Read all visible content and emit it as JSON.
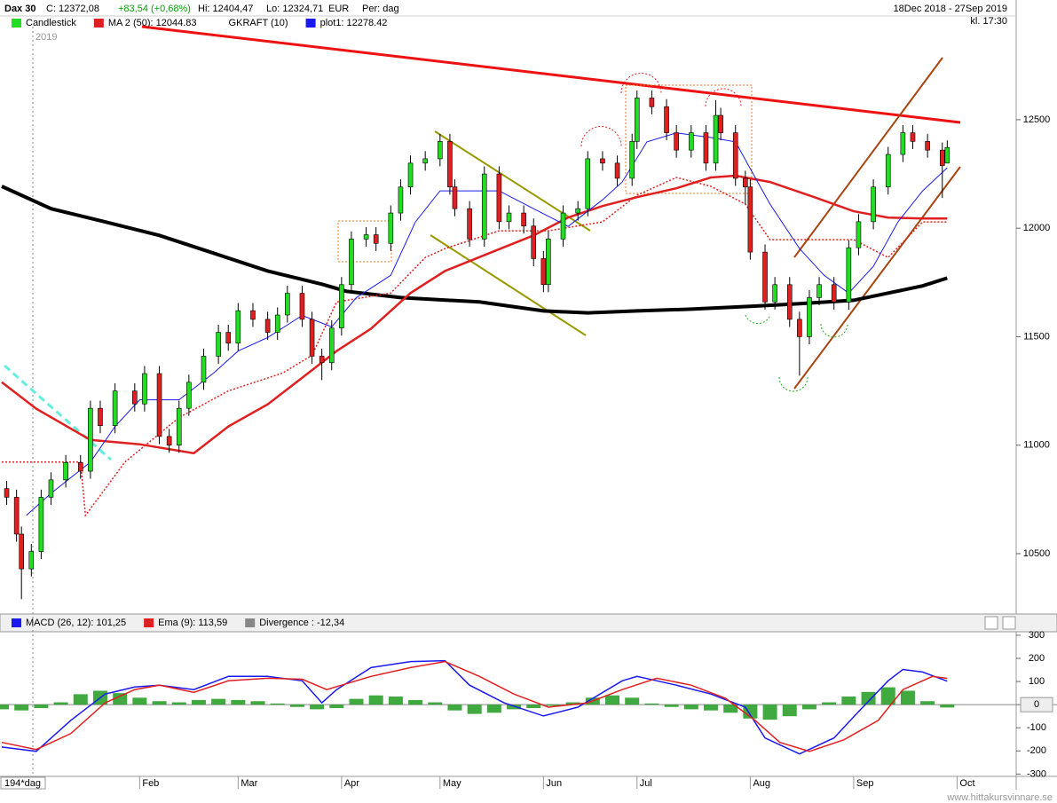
{
  "header": {
    "title": "Dax 30",
    "close": "C: 12372,08",
    "change": "+83,54 (+0,68%)",
    "high": "Hi: 12404,47",
    "low": "Lo: 12324,71",
    "currency": "EUR",
    "period": "Per: dag",
    "range": "18Dec 2018 - 27Sep 2019",
    "time": "kl. 17:30",
    "year": "2019",
    "bars_count": "194*dag",
    "watermark": "www.hittakursvinnare.se"
  },
  "chart_data": [
    {
      "type": "candlestick",
      "xlim": [
        -0.36,
        206
      ],
      "ylim": [
        10230,
        12970
      ],
      "xticks": [
        {
          "value": 28,
          "label": "Feb"
        },
        {
          "value": 48,
          "label": "Mar"
        },
        {
          "value": 69,
          "label": "Apr"
        },
        {
          "value": 89,
          "label": "May"
        },
        {
          "value": 110,
          "label": "Jun"
        },
        {
          "value": 129,
          "label": "Jul"
        },
        {
          "value": 152,
          "label": "Aug"
        },
        {
          "value": 173,
          "label": "Sep"
        },
        {
          "value": 194,
          "label": "Oct"
        }
      ],
      "yticks": [
        10500,
        11000,
        11500,
        12000,
        12500
      ],
      "candles": {
        "name": "Candlestick",
        "color": "#22dd22",
        "down_color": "#e02020",
        "x": [
          1,
          3,
          4,
          6,
          8,
          10,
          13,
          16,
          18,
          20,
          23,
          27,
          29,
          32,
          34,
          36,
          38,
          41,
          44,
          46,
          48,
          51,
          54,
          56,
          58,
          61,
          63,
          65,
          67,
          69,
          71,
          74,
          76,
          79,
          81,
          83,
          86,
          89,
          91,
          92,
          95,
          98,
          101,
          103,
          106,
          108,
          110,
          111,
          114,
          117,
          119,
          122,
          125,
          128,
          129,
          132,
          135,
          137,
          140,
          143,
          145,
          146,
          149,
          151,
          152,
          155,
          157,
          160,
          162,
          164,
          166,
          169,
          172,
          174,
          177,
          180,
          183,
          185,
          188,
          191,
          192
        ],
        "open": [
          10800,
          10760,
          10590,
          10430,
          10510,
          10760,
          10840,
          10920,
          10880,
          11170,
          11090,
          11250,
          11190,
          11330,
          11040,
          11000,
          11170,
          11290,
          11410,
          11520,
          11470,
          11620,
          11580,
          11520,
          11600,
          11700,
          11580,
          11410,
          11380,
          11540,
          11740,
          11950,
          11970,
          11930,
          12070,
          12190,
          12300,
          12320,
          12400,
          12190,
          12090,
          11950,
          12250,
          12030,
          12070,
          12010,
          11860,
          11740,
          11950,
          12070,
          12090,
          12320,
          12300,
          12230,
          12400,
          12600,
          12560,
          12440,
          12360,
          12440,
          12300,
          12520,
          12440,
          12230,
          12190,
          11890,
          11660,
          11740,
          11580,
          11500,
          11680,
          11740,
          11660,
          11910,
          12030,
          12190,
          12340,
          12440,
          12400,
          12360,
          12300
        ],
        "high": [
          10835,
          10795,
          10625,
          10545,
          10795,
          10875,
          10955,
          10955,
          11205,
          11205,
          11285,
          11285,
          11365,
          11365,
          11075,
          11205,
          11325,
          11445,
          11555,
          11555,
          11655,
          11655,
          11615,
          11635,
          11735,
          11735,
          11615,
          11445,
          11575,
          11775,
          11985,
          12005,
          12005,
          12105,
          12225,
          12335,
          12355,
          12435,
          12435,
          12225,
          12125,
          12285,
          12285,
          12105,
          12105,
          12045,
          11895,
          11985,
          12105,
          12125,
          12355,
          12355,
          12335,
          12435,
          12635,
          12635,
          12595,
          12475,
          12475,
          12475,
          12590,
          12555,
          12475,
          12265,
          12225,
          11925,
          11775,
          11775,
          11615,
          11715,
          11775,
          11775,
          11945,
          12065,
          12225,
          12375,
          12475,
          12475,
          12435,
          12395,
          12404.47
        ],
        "low": [
          10725,
          10555,
          10290,
          10395,
          10475,
          10725,
          10805,
          10845,
          10845,
          11055,
          11055,
          11155,
          11155,
          11005,
          10965,
          10965,
          11135,
          11255,
          11375,
          11435,
          11435,
          11545,
          11485,
          11485,
          11565,
          11545,
          11375,
          11300,
          11345,
          11505,
          11705,
          11915,
          11895,
          11895,
          12035,
          12155,
          12265,
          12285,
          12155,
          12055,
          11915,
          11915,
          11995,
          11995,
          11975,
          11825,
          11705,
          11705,
          11915,
          12035,
          12055,
          12265,
          12195,
          12195,
          12365,
          12525,
          12405,
          12325,
          12325,
          12265,
          12265,
          12405,
          12195,
          12110,
          11855,
          11625,
          11625,
          11545,
          11320,
          11465,
          11645,
          11625,
          11625,
          11875,
          11995,
          12155,
          12305,
          12365,
          12325,
          12140,
          12324.71
        ],
        "close": [
          10760,
          10590,
          10430,
          10510,
          10760,
          10840,
          10920,
          10880,
          11170,
          11090,
          11250,
          11190,
          11330,
          11040,
          11000,
          11170,
          11290,
          11410,
          11520,
          11470,
          11620,
          11580,
          11520,
          11600,
          11700,
          11580,
          11410,
          11380,
          11540,
          11740,
          11950,
          11970,
          11930,
          12070,
          12190,
          12300,
          12320,
          12400,
          12190,
          12090,
          11950,
          12250,
          12030,
          12070,
          12010,
          11860,
          11740,
          11950,
          12070,
          12090,
          12320,
          12300,
          12230,
          12400,
          12600,
          12560,
          12440,
          12360,
          12440,
          12300,
          12520,
          12440,
          12230,
          12190,
          11890,
          11660,
          11740,
          11580,
          11500,
          11680,
          11740,
          11660,
          11910,
          12030,
          12190,
          12340,
          12440,
          12400,
          12360,
          12288.54,
          12372.08
        ]
      },
      "series": [
        {
          "color": "#000000",
          "style": "bold",
          "x": [
            0,
            10,
            21,
            32,
            43,
            54,
            65,
            70,
            81,
            97,
            110,
            119,
            129,
            140,
            152,
            162,
            173,
            180,
            187,
            192
          ],
          "values": [
            12193,
            12090,
            12029,
            11967,
            11885,
            11803,
            11742,
            11709,
            11680,
            11660,
            11619,
            11610,
            11619,
            11627,
            11640,
            11652,
            11668,
            11701,
            11734,
            11770
          ]
        },
        {
          "name": "MA 2 (50): 12044.83",
          "color": "#e02020",
          "style": "solid",
          "x": [
            0,
            7,
            18,
            28,
            39,
            46,
            54,
            61,
            68,
            75,
            83,
            90,
            99,
            108,
            115,
            122,
            129,
            137,
            144,
            149,
            156,
            165,
            173,
            180,
            187,
            192
          ],
          "values": [
            11290,
            11168,
            11024,
            11004,
            10963,
            11086,
            11188,
            11311,
            11434,
            11537,
            11701,
            11803,
            11885,
            11967,
            12049,
            12102,
            12143,
            12184,
            12234,
            12242,
            12213,
            12143,
            12078,
            12049,
            12045,
            12044.83
          ]
        },
        {
          "name": "GKRAFT (10)",
          "color": "#e02020",
          "style": "dotted",
          "x": [
            0,
            16,
            17,
            25,
            36,
            46,
            57,
            63,
            68,
            79,
            86,
            90,
            101,
            111,
            122,
            129,
            137,
            144,
            151,
            156,
            162,
            173,
            180,
            187,
            192
          ],
          "values": [
            10922,
            10922,
            10676,
            10922,
            11127,
            11250,
            11332,
            11414,
            11660,
            11701,
            11865,
            11906,
            11988,
            11988,
            12029,
            12152,
            12234,
            12193,
            12111,
            11947,
            11947,
            11947,
            11865,
            12029,
            12029
          ]
        },
        {
          "name": "plot1: 12278.42",
          "color": "#1a1aee",
          "style": "thin",
          "x": [
            5,
            10,
            18,
            23,
            28,
            36,
            43,
            48,
            54,
            61,
            67,
            72,
            79,
            84,
            89,
            93,
            101,
            108,
            115,
            122,
            126,
            131,
            137,
            144,
            149,
            153,
            156,
            162,
            167,
            172,
            177,
            182,
            187,
            192
          ],
          "values": [
            10676,
            10778,
            10922,
            11086,
            11209,
            11209,
            11332,
            11434,
            11496,
            11598,
            11545,
            11680,
            11783,
            12029,
            12172,
            12172,
            12172,
            12090,
            12008,
            12131,
            12213,
            12398,
            12439,
            12418,
            12398,
            12234,
            12111,
            11906,
            11783,
            11701,
            11824,
            12029,
            12172,
            12278.42
          ]
        }
      ]
    },
    {
      "type": "macd",
      "xlim": [
        -0.36,
        206
      ],
      "ylim": [
        -310,
        315
      ],
      "yticks": [
        300,
        200,
        100,
        0,
        -100,
        -200,
        -300
      ],
      "series": [
        {
          "name": "MACD (26, 12): 101,25",
          "color": "#1a1aee",
          "x": [
            0,
            7,
            14,
            21,
            27,
            32,
            39,
            46,
            54,
            61,
            65,
            68,
            75,
            83,
            90,
            95,
            102,
            110,
            117,
            126,
            129,
            137,
            144,
            151,
            155,
            162,
            169,
            174,
            180,
            183,
            187,
            192
          ],
          "values": [
            -183,
            -202,
            -68,
            46,
            76,
            84,
            65,
            122,
            122,
            103,
            8,
            65,
            160,
            186,
            190,
            84,
            8,
            -49,
            -11,
            103,
            122,
            84,
            46,
            -11,
            -144,
            -213,
            -144,
            -30,
            103,
            152,
            141,
            101.25
          ]
        },
        {
          "name": "Ema (9): 113,59",
          "color": "#e02020",
          "x": [
            0,
            7,
            14,
            21,
            27,
            32,
            39,
            46,
            54,
            61,
            66,
            75,
            83,
            90,
            97,
            104,
            111,
            119,
            126,
            133,
            140,
            147,
            153,
            158,
            164,
            171,
            178,
            183,
            189,
            192
          ],
          "values": [
            -163,
            -194,
            -125,
            8,
            65,
            84,
            53,
            103,
            114,
            110,
            65,
            122,
            160,
            186,
            122,
            46,
            -11,
            8,
            65,
            114,
            84,
            27,
            -68,
            -163,
            -202,
            -152,
            -68,
            65,
            122,
            113.59
          ]
        }
      ],
      "bars": {
        "name": "Divergence : -12,34",
        "color": "#1f9a1f",
        "legend_color": "#888888",
        "x": [
          0,
          4,
          8,
          12,
          16,
          20,
          24,
          28,
          32,
          36,
          40,
          44,
          48,
          52,
          56,
          60,
          64,
          68,
          72,
          76,
          80,
          84,
          88,
          92,
          96,
          100,
          104,
          108,
          112,
          116,
          120,
          124,
          128,
          132,
          136,
          140,
          144,
          148,
          152,
          156,
          160,
          164,
          168,
          172,
          176,
          180,
          184,
          188,
          192
        ],
        "values": [
          -20,
          -25,
          -15,
          10,
          45,
          60,
          50,
          30,
          15,
          10,
          20,
          25,
          20,
          15,
          5,
          -10,
          -20,
          -15,
          25,
          40,
          35,
          20,
          10,
          -25,
          -40,
          -35,
          -20,
          -15,
          -5,
          10,
          30,
          40,
          30,
          5,
          -10,
          -20,
          -25,
          -35,
          -60,
          -65,
          -50,
          -20,
          10,
          35,
          55,
          75,
          60,
          15,
          -12.34
        ]
      }
    }
  ]
}
